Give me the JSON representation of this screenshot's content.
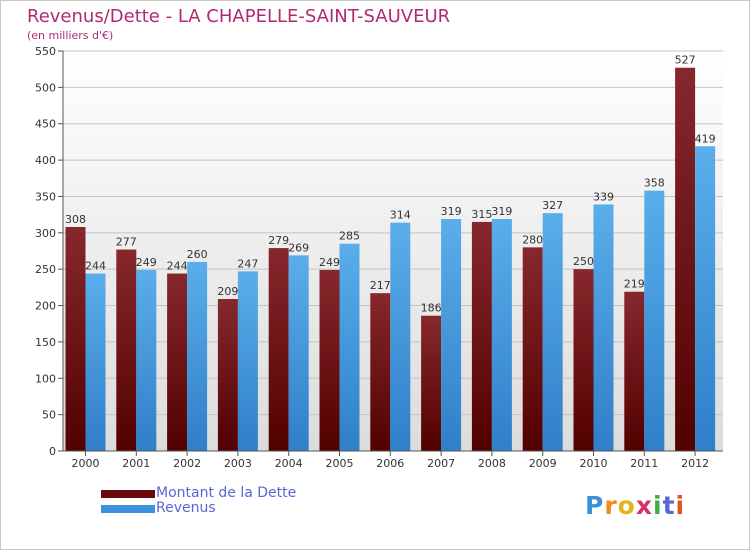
{
  "chart_data": {
    "type": "bar",
    "title": "Revenus/Dette - LA CHAPELLE-SAINT-SAUVEUR",
    "subtitle": "(en milliers d'€)",
    "categories": [
      "2000",
      "2001",
      "2002",
      "2003",
      "2004",
      "2005",
      "2006",
      "2007",
      "2008",
      "2009",
      "2010",
      "2011",
      "2012"
    ],
    "series": [
      {
        "name": "Montant de la Dette",
        "color": "#7a1418",
        "values": [
          308,
          277,
          244,
          209,
          279,
          249,
          217,
          186,
          315,
          280,
          250,
          219,
          527
        ]
      },
      {
        "name": "Revenus",
        "color": "#3a92dc",
        "values": [
          244,
          249,
          260,
          247,
          269,
          285,
          314,
          319,
          319,
          327,
          339,
          358,
          419
        ]
      }
    ],
    "ylim": [
      0,
      550
    ],
    "yticks": [
      0,
      50,
      100,
      150,
      200,
      250,
      300,
      350,
      400,
      450,
      500,
      550
    ],
    "grid": true,
    "legend_position": "bottom-left"
  },
  "logo": {
    "text": "Proxiti"
  }
}
